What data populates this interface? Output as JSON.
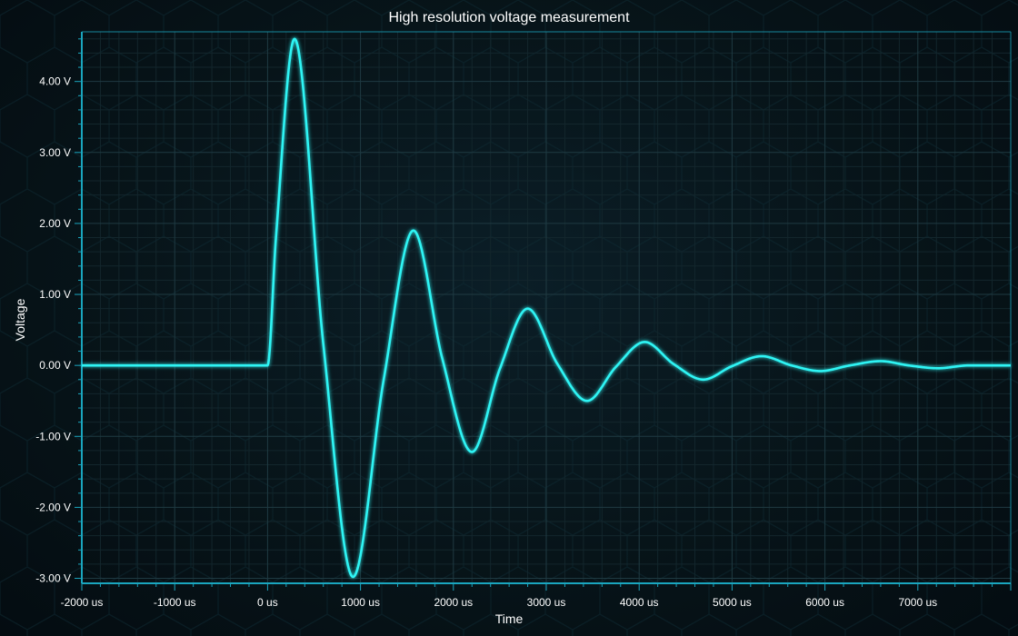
{
  "chart_data": {
    "type": "line",
    "title": "High resolution voltage measurement",
    "xlabel": "Time",
    "ylabel": "Voltage",
    "x_unit": "us",
    "y_unit": "V",
    "xlim": [
      -2000,
      8000
    ],
    "ylim": [
      -3.07,
      4.7
    ],
    "x_ticks": [
      -2000,
      -1000,
      0,
      1000,
      2000,
      3000,
      4000,
      5000,
      6000,
      7000
    ],
    "x_tick_labels": [
      "-2000 us",
      "-1000 us",
      "0 us",
      "1000 us",
      "2000 us",
      "3000 us",
      "4000 us",
      "5000 us",
      "6000 us",
      "7000 us"
    ],
    "y_ticks": [
      -3,
      -2,
      -1,
      0,
      1,
      2,
      3,
      4
    ],
    "y_tick_labels": [
      "-3.00 V",
      "-2.00 V",
      "-1.00 V",
      "0.00 V",
      "1.00 V",
      "2.00 V",
      "3.00 V",
      "4.00 V"
    ],
    "grid": true,
    "colors": {
      "line": "#2ff4f4",
      "axis": "#1aa6bf",
      "grid_major": "#1f3a42",
      "grid_minor": "#13262c",
      "text": "#ffffff"
    },
    "series": [
      {
        "x": [
          -2000,
          -1000,
          0,
          90,
          290,
          600,
          920,
          1250,
          1570,
          1880,
          2200,
          2500,
          2800,
          3120,
          3440,
          3750,
          4060,
          4370,
          4690,
          5000,
          5320,
          5640,
          5950,
          6270,
          6600,
          6900,
          7220,
          7550,
          8000
        ],
        "values": [
          0.0,
          0.0,
          0.0,
          1.8,
          4.6,
          0.3,
          -2.98,
          -0.2,
          1.9,
          0.1,
          -1.22,
          -0.05,
          0.8,
          0.02,
          -0.5,
          -0.02,
          0.33,
          0.02,
          -0.2,
          -0.01,
          0.13,
          0.0,
          -0.08,
          0.0,
          0.06,
          0.0,
          -0.04,
          0.0,
          0.0
        ]
      }
    ]
  }
}
